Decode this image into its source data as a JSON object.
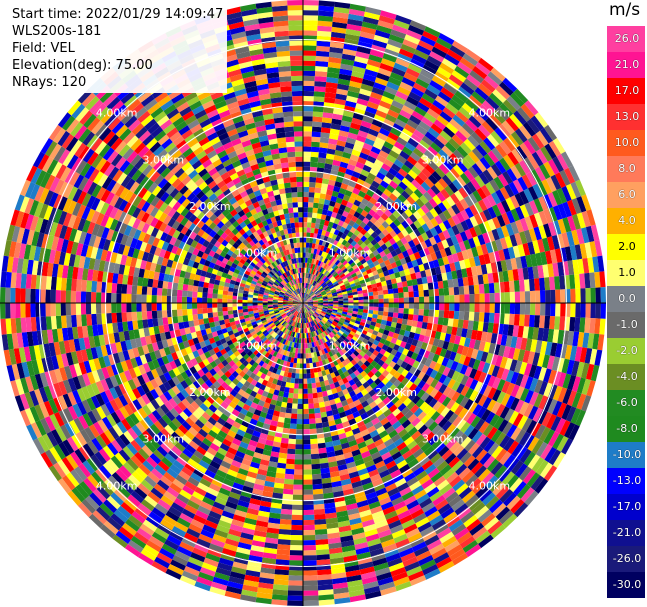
{
  "info": {
    "start_time": "Start time: 2022/01/29 14:09:47",
    "instrument": "WLS200s-181",
    "field": "Field: VEL",
    "elevation": "Elevation(deg): 75.00",
    "nrays": "NRays: 120"
  },
  "colorbar": {
    "unit": "m/s",
    "ticks": [
      "26.0",
      "21.0",
      "17.0",
      "13.0",
      "10.0",
      "8.0",
      "6.0",
      "4.0",
      "2.0",
      "1.0",
      "0.0",
      "-1.0",
      "-2.0",
      "-4.0",
      "-6.0",
      "-8.0",
      "-10.0",
      "-13.0",
      "-17.0",
      "-21.0",
      "-26.0",
      "-30.0"
    ],
    "colors": [
      "#ff3fa0",
      "#ff1493",
      "#ff0000",
      "#ff3030",
      "#ff5a1e",
      "#ff7a5a",
      "#ffa060",
      "#ffb000",
      "#ffff00",
      "#ffff70",
      "#7a8088",
      "#6a6a6a",
      "#9acd32",
      "#6b8e23",
      "#228b22",
      "#1f8a1f",
      "#1e7cc8",
      "#0000ff",
      "#0000cd",
      "#101090",
      "#1a1a7a",
      "#000060"
    ]
  },
  "chart_data": {
    "type": "heatmap",
    "projection": "polar-ppi",
    "field": "VEL",
    "units": "m/s",
    "n_rays": 120,
    "range_rings_km": [
      1.0,
      2.0,
      3.0,
      4.0
    ],
    "range_ring_labels": [
      "1.00km",
      "2.00km",
      "3.00km",
      "4.00km"
    ],
    "color_scale_min": -30.0,
    "color_scale_max": 26.0,
    "grid": true
  }
}
